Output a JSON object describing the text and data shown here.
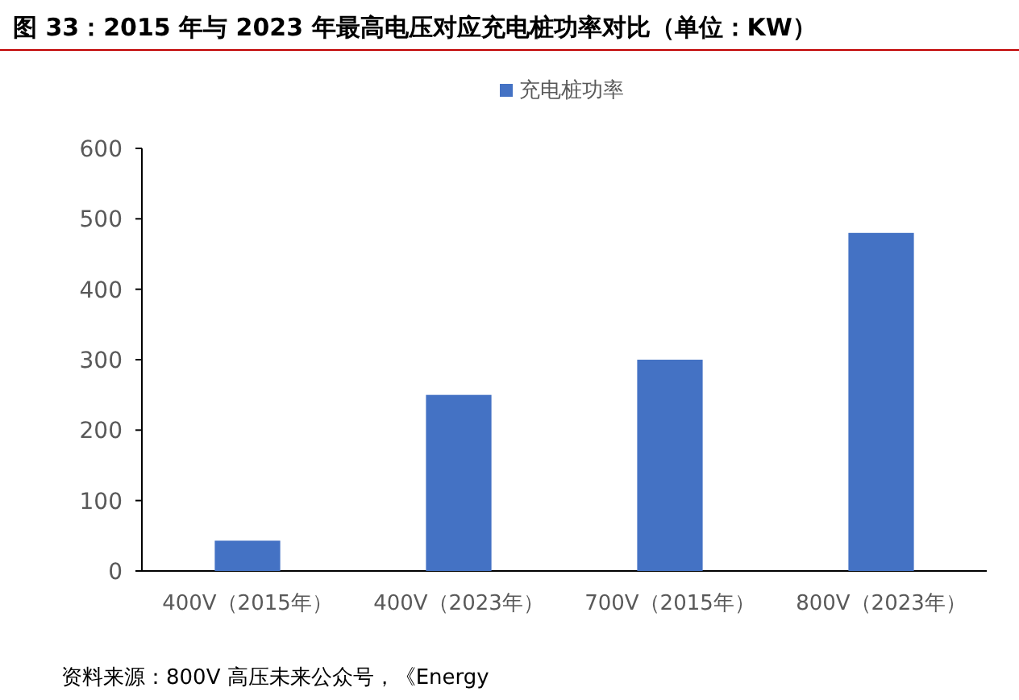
{
  "chart_data": {
    "type": "bar",
    "title": "图 33：2015 年与 2023 年最高电压对应充电桩功率对比（单位：KW）",
    "categories": [
      "400V（2015年）",
      "400V（2023年）",
      "700V（2015年）",
      "800V（2023年）"
    ],
    "series": [
      {
        "name": "充电桩功率",
        "color": "#4472c4",
        "values": [
          43,
          250,
          300,
          480
        ]
      }
    ],
    "ylim": [
      0,
      600
    ],
    "yticks": [
      0,
      100,
      200,
      300,
      400,
      500,
      600
    ],
    "grid": false,
    "legend": "top",
    "annotations": [
      "资料来源：800V 高压未来公众号，《Energy"
    ]
  }
}
